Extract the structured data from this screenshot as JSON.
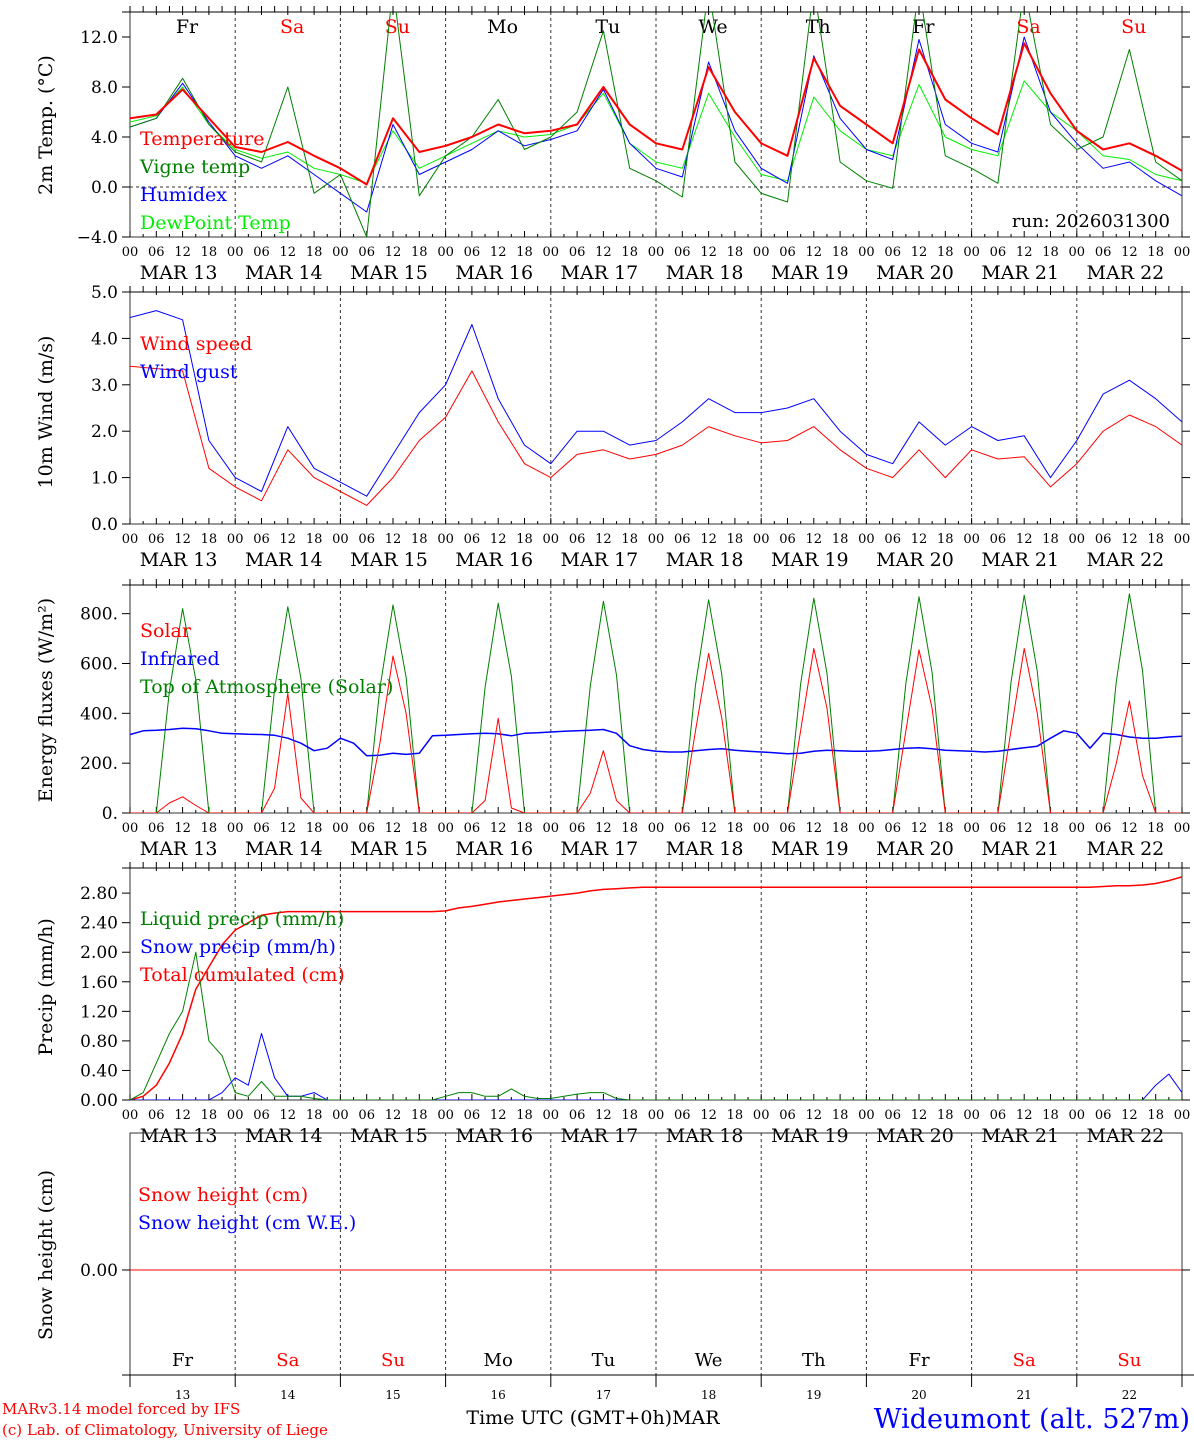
{
  "title": "Wideumont (alt. 527m)",
  "footer": {
    "model": "MARv3.14 model forced by IFS",
    "copyright": "(c) Lab. of Climatology, University of Liege",
    "xlabel": "Time UTC (GMT+0h)MAR",
    "station": "Wideumont (alt. 527m)"
  },
  "colors": {
    "red": "#ff0000",
    "green": "#008000",
    "blue": "#0000ff",
    "lightgreen": "#00ee00"
  },
  "days": [
    {
      "name": "Fr",
      "date": "MAR 13",
      "num": "13",
      "weekend": false
    },
    {
      "name": "Sa",
      "date": "MAR 14",
      "num": "14",
      "weekend": true
    },
    {
      "name": "Su",
      "date": "MAR 15",
      "num": "15",
      "weekend": true
    },
    {
      "name": "Mo",
      "date": "MAR 16",
      "num": "16",
      "weekend": false
    },
    {
      "name": "Tu",
      "date": "MAR 17",
      "num": "17",
      "weekend": false
    },
    {
      "name": "We",
      "date": "MAR 18",
      "num": "18",
      "weekend": false
    },
    {
      "name": "Th",
      "date": "MAR 19",
      "num": "19",
      "weekend": false
    },
    {
      "name": "Fr",
      "date": "MAR 20",
      "num": "20",
      "weekend": false
    },
    {
      "name": "Sa",
      "date": "MAR 21",
      "num": "21",
      "weekend": true
    },
    {
      "name": "Su",
      "date": "MAR 22",
      "num": "22",
      "weekend": true
    }
  ],
  "hour_labels": [
    "00",
    "06",
    "12",
    "18"
  ],
  "chart_data": [
    {
      "type": "line",
      "ylabel": "2m Temp. (°C)",
      "ylim": [
        -4,
        14
      ],
      "yticks": [
        {
          "v": 12,
          "label": "12.0"
        },
        {
          "v": 8,
          "label": "8.0"
        },
        {
          "v": 4,
          "label": "4.0"
        },
        {
          "v": 0,
          "label": "0.0"
        },
        {
          "v": -4,
          "label": "−4.0"
        }
      ],
      "zero_line": true,
      "annotation": "run: 2026031300",
      "step_hours": 6,
      "series": [
        {
          "name": "Temperature",
          "color": "#ff0000",
          "width": 2,
          "values": [
            5.5,
            5.8,
            7.8,
            5.5,
            3.2,
            2.8,
            3.6,
            2.5,
            1.5,
            0.2,
            5.5,
            2.8,
            3.3,
            4.0,
            5.0,
            4.3,
            4.5,
            5.0,
            8.0,
            5.0,
            3.5,
            3.0,
            9.6,
            6.0,
            3.5,
            2.5,
            10.3,
            6.5,
            5.0,
            3.5,
            11.0,
            7.0,
            5.5,
            4.2,
            11.5,
            7.5,
            4.5,
            3.0,
            3.5,
            2.5,
            1.3
          ]
        },
        {
          "name": "Vigne temp",
          "color": "#008000",
          "width": 1,
          "values": [
            4.8,
            5.5,
            8.7,
            5.0,
            2.8,
            2.0,
            8.0,
            -0.5,
            1.0,
            -4.0,
            16.0,
            -0.7,
            2.5,
            4.0,
            7.0,
            3.0,
            4.0,
            6.0,
            12.5,
            1.5,
            0.5,
            -0.8,
            16.0,
            2.0,
            -0.5,
            -1.2,
            16.0,
            2.0,
            0.5,
            -0.1,
            16.0,
            2.5,
            1.5,
            0.3,
            16.0,
            5.0,
            3.0,
            4.0,
            11.0,
            2.0,
            0.5
          ]
        },
        {
          "name": "Humidex",
          "color": "#0000ff",
          "width": 1,
          "values": [
            4.8,
            5.5,
            8.3,
            5.2,
            2.5,
            1.5,
            2.5,
            1.0,
            -0.5,
            -2.0,
            5.0,
            1.0,
            2.0,
            3.0,
            4.5,
            3.3,
            3.8,
            4.5,
            7.8,
            3.5,
            1.5,
            0.8,
            10.0,
            4.5,
            1.5,
            0.3,
            10.5,
            5.5,
            3.0,
            2.2,
            11.8,
            5.0,
            3.5,
            2.8,
            12.0,
            6.0,
            3.5,
            1.5,
            2.0,
            0.5,
            -0.7
          ]
        },
        {
          "name": "DewPoint Temp",
          "color": "#00ee00",
          "width": 1,
          "values": [
            5.2,
            5.7,
            8.0,
            5.0,
            3.0,
            2.3,
            2.8,
            1.5,
            1.0,
            0.3,
            4.5,
            1.5,
            2.5,
            3.5,
            4.5,
            4.0,
            4.2,
            5.0,
            7.5,
            3.5,
            2.0,
            1.5,
            7.5,
            4.0,
            1.0,
            0.5,
            7.2,
            4.5,
            3.0,
            2.5,
            8.2,
            4.0,
            3.0,
            2.5,
            8.5,
            6.0,
            4.5,
            2.5,
            2.2,
            1.0,
            0.5
          ]
        }
      ]
    },
    {
      "type": "line",
      "ylabel": "10m Wind (m/s)",
      "ylim": [
        0,
        5
      ],
      "yticks": [
        {
          "v": 5,
          "label": "5.0"
        },
        {
          "v": 4,
          "label": "4.0"
        },
        {
          "v": 3,
          "label": "3.0"
        },
        {
          "v": 2,
          "label": "2.0"
        },
        {
          "v": 1,
          "label": "1.0"
        },
        {
          "v": 0,
          "label": "0.0"
        }
      ],
      "step_hours": 6,
      "series": [
        {
          "name": "Wind speed",
          "color": "#ff0000",
          "width": 1,
          "values": [
            3.4,
            3.35,
            3.3,
            1.2,
            0.8,
            0.5,
            1.6,
            1.0,
            0.7,
            0.4,
            1.0,
            1.8,
            2.3,
            3.3,
            2.2,
            1.3,
            1.0,
            1.5,
            1.6,
            1.4,
            1.5,
            1.7,
            2.1,
            1.9,
            1.75,
            1.8,
            2.1,
            1.6,
            1.2,
            1.0,
            1.6,
            1.0,
            1.6,
            1.4,
            1.45,
            0.8,
            1.3,
            2.0,
            2.35,
            2.1,
            1.7
          ]
        },
        {
          "name": "Wind gust",
          "color": "#0000ff",
          "width": 1,
          "values": [
            4.45,
            4.6,
            4.4,
            1.8,
            1.0,
            0.7,
            2.1,
            1.2,
            0.9,
            0.6,
            1.5,
            2.4,
            3.0,
            4.3,
            2.7,
            1.7,
            1.3,
            2.0,
            2.0,
            1.7,
            1.8,
            2.2,
            2.7,
            2.4,
            2.4,
            2.5,
            2.7,
            2.0,
            1.5,
            1.3,
            2.2,
            1.7,
            2.1,
            1.8,
            1.9,
            1.0,
            1.8,
            2.8,
            3.1,
            2.7,
            2.2
          ]
        }
      ]
    },
    {
      "type": "line",
      "ylabel": "Energy fluxes (W/m²)",
      "ylim": [
        0,
        915
      ],
      "yticks": [
        {
          "v": 800,
          "label": "800."
        },
        {
          "v": 600,
          "label": "600."
        },
        {
          "v": 400,
          "label": "400."
        },
        {
          "v": 200,
          "label": "200."
        },
        {
          "v": 0,
          "label": "0."
        }
      ],
      "step_hours": 3,
      "series": [
        {
          "name": "Solar",
          "color": "#ff0000",
          "width": 1,
          "values": [
            0,
            0,
            0,
            40,
            65,
            30,
            0,
            0,
            0,
            0,
            0,
            100,
            480,
            60,
            0,
            0,
            0,
            0,
            0,
            280,
            630,
            400,
            0,
            0,
            0,
            0,
            0,
            50,
            380,
            20,
            0,
            0,
            0,
            0,
            0,
            80,
            250,
            50,
            0,
            0,
            0,
            0,
            0,
            330,
            640,
            380,
            0,
            0,
            0,
            0,
            0,
            330,
            660,
            420,
            0,
            0,
            0,
            0,
            0,
            330,
            655,
            420,
            0,
            0,
            0,
            0,
            0,
            330,
            660,
            400,
            0,
            0,
            0,
            0,
            0,
            200,
            450,
            150,
            0,
            0,
            0
          ]
        },
        {
          "name": "Infrared",
          "color": "#0000ff",
          "width": 1.5,
          "values": [
            315,
            330,
            332,
            335,
            340,
            338,
            330,
            320,
            318,
            316,
            315,
            312,
            300,
            280,
            250,
            260,
            300,
            280,
            230,
            232,
            240,
            235,
            240,
            310,
            312,
            315,
            318,
            320,
            318,
            310,
            320,
            322,
            325,
            328,
            330,
            332,
            335,
            320,
            270,
            255,
            248,
            245,
            245,
            250,
            255,
            258,
            252,
            248,
            245,
            242,
            238,
            240,
            248,
            252,
            250,
            248,
            248,
            250,
            255,
            260,
            262,
            258,
            252,
            250,
            248,
            245,
            248,
            255,
            262,
            268,
            300,
            330,
            320,
            260,
            320,
            315,
            305,
            300,
            300,
            305,
            308
          ]
        },
        {
          "name": "Top of Atmosphere (Solar)",
          "color": "#008000",
          "width": 1,
          "values": [
            0,
            0,
            0,
            490,
            820,
            535,
            0,
            0,
            0,
            0,
            0,
            497,
            828,
            540,
            0,
            0,
            0,
            0,
            0,
            501,
            835,
            545,
            0,
            0,
            0,
            0,
            0,
            505,
            842,
            548,
            0,
            0,
            0,
            0,
            0,
            510,
            850,
            553,
            0,
            0,
            0,
            0,
            0,
            514,
            856,
            556,
            0,
            0,
            0,
            0,
            0,
            517,
            862,
            560,
            0,
            0,
            0,
            0,
            0,
            521,
            868,
            564,
            0,
            0,
            0,
            0,
            0,
            524,
            874,
            568,
            0,
            0,
            0,
            0,
            0,
            528,
            880,
            572,
            0,
            0,
            0
          ]
        }
      ]
    },
    {
      "type": "line",
      "ylabel": "Precip (mm/h)",
      "ylim": [
        0,
        3.14
      ],
      "yticks": [
        {
          "v": 2.8,
          "label": "2.80"
        },
        {
          "v": 2.4,
          "label": "2.40"
        },
        {
          "v": 2.0,
          "label": "2.00"
        },
        {
          "v": 1.6,
          "label": "1.60"
        },
        {
          "v": 1.2,
          "label": "1.20"
        },
        {
          "v": 0.8,
          "label": "0.80"
        },
        {
          "v": 0.4,
          "label": "0.40"
        },
        {
          "v": 0,
          "label": "0.00"
        }
      ],
      "step_hours": 3,
      "series": [
        {
          "name": "Liquid precip (mm/h)",
          "color": "#008000",
          "width": 1,
          "values": [
            0,
            0.1,
            0.5,
            0.9,
            1.2,
            2.0,
            0.8,
            0.6,
            0.1,
            0.05,
            0.25,
            0.05,
            0.05,
            0.05,
            0.02,
            0,
            0,
            0,
            0,
            0,
            0,
            0,
            0,
            0,
            0.05,
            0.1,
            0.1,
            0.05,
            0.05,
            0.15,
            0.05,
            0.02,
            0.02,
            0.05,
            0.08,
            0.1,
            0.1,
            0.02,
            0,
            0,
            0,
            0,
            0,
            0,
            0,
            0,
            0,
            0,
            0,
            0,
            0,
            0,
            0,
            0,
            0,
            0,
            0,
            0,
            0,
            0,
            0,
            0,
            0,
            0,
            0,
            0,
            0,
            0,
            0,
            0,
            0,
            0,
            0,
            0,
            0,
            0,
            0,
            0,
            0,
            0,
            0
          ]
        },
        {
          "name": "Snow precip (mm/h)",
          "color": "#0000ff",
          "width": 1,
          "values": [
            0,
            0,
            0,
            0,
            0,
            0,
            0,
            0.1,
            0.3,
            0.2,
            0.9,
            0.3,
            0.05,
            0.05,
            0.1,
            0,
            0,
            0,
            0,
            0,
            0,
            0,
            0,
            0,
            0,
            0,
            0,
            0,
            0,
            0,
            0,
            0,
            0,
            0,
            0,
            0,
            0,
            0,
            0,
            0,
            0,
            0,
            0,
            0,
            0,
            0,
            0,
            0,
            0,
            0,
            0,
            0,
            0,
            0,
            0,
            0,
            0,
            0,
            0,
            0,
            0,
            0,
            0,
            0,
            0,
            0,
            0,
            0,
            0,
            0,
            0,
            0,
            0,
            0,
            0,
            0,
            0,
            0,
            0.2,
            0.35,
            0.1
          ]
        },
        {
          "name": "Total cumulated (cm)",
          "color": "#ff0000",
          "width": 1.5,
          "values": [
            0,
            0.05,
            0.2,
            0.5,
            0.9,
            1.5,
            1.8,
            2.1,
            2.3,
            2.4,
            2.5,
            2.53,
            2.55,
            2.55,
            2.55,
            2.55,
            2.55,
            2.55,
            2.55,
            2.55,
            2.55,
            2.55,
            2.55,
            2.55,
            2.56,
            2.6,
            2.62,
            2.65,
            2.68,
            2.7,
            2.72,
            2.74,
            2.76,
            2.78,
            2.8,
            2.83,
            2.85,
            2.86,
            2.87,
            2.88,
            2.88,
            2.88,
            2.88,
            2.88,
            2.88,
            2.88,
            2.88,
            2.88,
            2.88,
            2.88,
            2.88,
            2.88,
            2.88,
            2.88,
            2.88,
            2.88,
            2.88,
            2.88,
            2.88,
            2.88,
            2.88,
            2.88,
            2.88,
            2.88,
            2.88,
            2.88,
            2.88,
            2.88,
            2.88,
            2.88,
            2.88,
            2.88,
            2.88,
            2.88,
            2.89,
            2.9,
            2.9,
            2.91,
            2.93,
            2.97,
            3.02
          ]
        }
      ]
    },
    {
      "type": "line",
      "ylabel": "Snow height (cm)",
      "ylim": [
        -0.434,
        0.566
      ],
      "yticks": [
        {
          "v": 0,
          "label": "0.00"
        }
      ],
      "step_hours": 240,
      "series": [
        {
          "name": "Snow height (cm)",
          "color": "#ff0000",
          "width": 1,
          "values": [
            0,
            0
          ]
        },
        {
          "name": "Snow height (cm W.E.)",
          "color": "#0000ff",
          "width": 1,
          "values": [
            0,
            0
          ]
        }
      ]
    }
  ]
}
